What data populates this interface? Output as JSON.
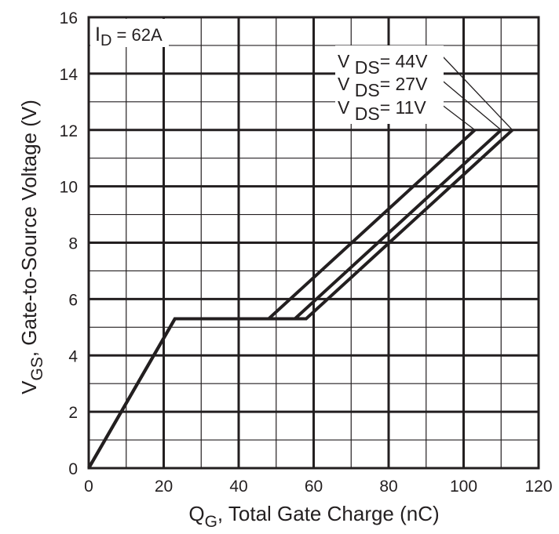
{
  "chart_data": {
    "type": "line",
    "xlabel_main": "Q",
    "xlabel_sub": "G",
    "xlabel_rest": ", Total Gate Charge (nC)",
    "ylabel_main": "V",
    "ylabel_sub": "GS",
    "ylabel_rest": ", Gate-to-Source Voltage (V)",
    "xlim": [
      0,
      120
    ],
    "ylim": [
      0,
      16
    ],
    "x_ticks": [
      "0",
      "20",
      "40",
      "60",
      "80",
      "100",
      "120"
    ],
    "y_ticks": [
      "0",
      "2",
      "4",
      "6",
      "8",
      "10",
      "12",
      "14",
      "16"
    ],
    "x_tick_values": [
      0,
      20,
      40,
      60,
      80,
      100,
      120
    ],
    "y_tick_values": [
      0,
      2,
      4,
      6,
      8,
      10,
      12,
      14,
      16
    ],
    "grid_minor_x_step": 10,
    "grid_minor_y_step": 1,
    "grid": true,
    "condition": {
      "main": "I",
      "sub": "D",
      "rest": " = 62A"
    },
    "series": [
      {
        "name": "V DS= 44V",
        "name_main": "V ",
        "name_sub": "DS",
        "name_rest": "= 44V",
        "points": [
          [
            0,
            0
          ],
          [
            23,
            5.3
          ],
          [
            58,
            5.3
          ],
          [
            113,
            12
          ]
        ]
      },
      {
        "name": "V DS= 27V",
        "name_main": "V ",
        "name_sub": "DS",
        "name_rest": "= 27V",
        "points": [
          [
            0,
            0
          ],
          [
            23,
            5.3
          ],
          [
            55,
            5.3
          ],
          [
            110,
            12
          ]
        ]
      },
      {
        "name": "V DS= 11V",
        "name_main": "V ",
        "name_sub": "DS",
        "name_rest": "= 11V",
        "points": [
          [
            0,
            0
          ],
          [
            23,
            5.3
          ],
          [
            48,
            5.3
          ],
          [
            103,
            12
          ]
        ]
      }
    ],
    "line_color": "#231f20",
    "grid_color": "#231f20"
  }
}
